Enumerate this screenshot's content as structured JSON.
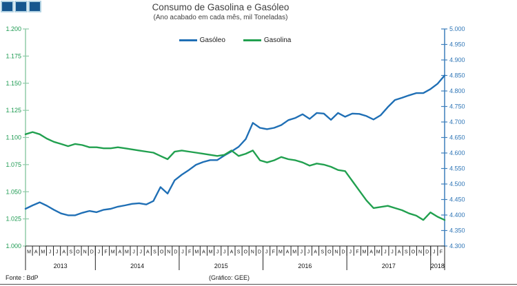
{
  "title": "Consumo de Gasolina e Gasóleo",
  "subtitle": "(Ano acabado em cada mês, mil Toneladas)",
  "header": {
    "square_fill": "#16568E",
    "square_border": "#B3D3E3"
  },
  "legend": [
    {
      "label": "Gasóleo",
      "color": "#1F6FB5"
    },
    {
      "label": "Gasolina",
      "color": "#21A04F"
    }
  ],
  "footer": {
    "source": "Fonte : BdP",
    "credit": "(Gráfico: GEE)"
  },
  "chart_data": {
    "type": "line",
    "title": "Consumo de Gasolina e Gasóleo",
    "subtitle": "(Ano acabado em cada mês, mil Toneladas)",
    "grid": false,
    "legend_position": "top-center",
    "x_months": [
      "M",
      "A",
      "M",
      "J",
      "J",
      "A",
      "S",
      "O",
      "N",
      "D",
      "J",
      "F",
      "M",
      "A",
      "M",
      "J",
      "J",
      "A",
      "S",
      "O",
      "N",
      "D",
      "J",
      "F",
      "M",
      "A",
      "M",
      "J",
      "J",
      "A",
      "S",
      "O",
      "N",
      "D",
      "J",
      "F",
      "M",
      "A",
      "M",
      "J",
      "J",
      "A",
      "S",
      "O",
      "N",
      "D",
      "J",
      "F",
      "M",
      "A",
      "M",
      "J",
      "J",
      "A",
      "S",
      "O",
      "N",
      "D",
      "J",
      "F"
    ],
    "x_years": [
      {
        "label": "2013",
        "months": 10
      },
      {
        "label": "2014",
        "months": 12
      },
      {
        "label": "2015",
        "months": 12
      },
      {
        "label": "2016",
        "months": 12
      },
      {
        "label": "2017",
        "months": 12
      },
      {
        "label": "2018",
        "months": 2
      }
    ],
    "left_axis": {
      "min": 1.0,
      "max": 1.2,
      "label_color": "#1B9A50",
      "line_color": "#90CBA8",
      "ticks": [
        {
          "label": "1.200",
          "value": 1.2
        },
        {
          "label": "1.175",
          "value": 1.175
        },
        {
          "label": "1.150",
          "value": 1.15
        },
        {
          "label": "1.125",
          "value": 1.125
        },
        {
          "label": "1.100",
          "value": 1.1
        },
        {
          "label": "1.075",
          "value": 1.075
        },
        {
          "label": "1.050",
          "value": 1.05
        },
        {
          "label": "1.025",
          "value": 1.025
        },
        {
          "label": "1.000",
          "value": 1.0
        }
      ]
    },
    "right_axis": {
      "min": 4.3,
      "max": 5.0,
      "label_color": "#2E75B6",
      "line_color": "#3D7FBC",
      "ticks": [
        {
          "label": "5.000",
          "value": 5.0
        },
        {
          "label": "4.950",
          "value": 4.95
        },
        {
          "label": "4.900",
          "value": 4.9
        },
        {
          "label": "4.850",
          "value": 4.85
        },
        {
          "label": "4.800",
          "value": 4.8
        },
        {
          "label": "4.750",
          "value": 4.75
        },
        {
          "label": "4.700",
          "value": 4.7
        },
        {
          "label": "4.650",
          "value": 4.65
        },
        {
          "label": "4.600",
          "value": 4.6
        },
        {
          "label": "4.550",
          "value": 4.55
        },
        {
          "label": "4.500",
          "value": 4.5
        },
        {
          "label": "4.450",
          "value": 4.45
        },
        {
          "label": "4.400",
          "value": 4.4
        },
        {
          "label": "4.350",
          "value": 4.35
        },
        {
          "label": "4.300",
          "value": 4.3
        }
      ]
    },
    "series": [
      {
        "name": "Gasóleo",
        "axis": "right",
        "color": "#1F6FB5",
        "values": [
          4.42,
          4.431,
          4.441,
          4.43,
          4.417,
          4.405,
          4.399,
          4.399,
          4.407,
          4.413,
          4.409,
          4.417,
          4.42,
          4.427,
          4.431,
          4.436,
          4.438,
          4.434,
          4.445,
          4.49,
          4.469,
          4.512,
          4.53,
          4.545,
          4.562,
          4.571,
          4.577,
          4.577,
          4.592,
          4.605,
          4.62,
          4.645,
          4.697,
          4.681,
          4.677,
          4.681,
          4.69,
          4.706,
          4.713,
          4.725,
          4.71,
          4.729,
          4.727,
          4.707,
          4.729,
          4.717,
          4.727,
          4.726,
          4.719,
          4.708,
          4.722,
          4.748,
          4.771,
          4.778,
          4.786,
          4.793,
          4.793,
          4.806,
          4.823,
          4.85
        ]
      },
      {
        "name": "Gasolina",
        "axis": "left",
        "color": "#21A04F",
        "values": [
          1.103,
          1.105,
          1.103,
          1.099,
          1.096,
          1.094,
          1.092,
          1.094,
          1.093,
          1.091,
          1.091,
          1.09,
          1.09,
          1.091,
          1.09,
          1.089,
          1.088,
          1.087,
          1.086,
          1.083,
          1.08,
          1.087,
          1.088,
          1.087,
          1.086,
          1.085,
          1.084,
          1.083,
          1.084,
          1.088,
          1.083,
          1.085,
          1.088,
          1.079,
          1.077,
          1.079,
          1.082,
          1.08,
          1.079,
          1.077,
          1.074,
          1.076,
          1.075,
          1.073,
          1.07,
          1.069,
          1.06,
          1.051,
          1.042,
          1.035,
          1.036,
          1.037,
          1.035,
          1.033,
          1.03,
          1.028,
          1.024,
          1.031,
          1.027,
          1.024
        ]
      }
    ]
  }
}
